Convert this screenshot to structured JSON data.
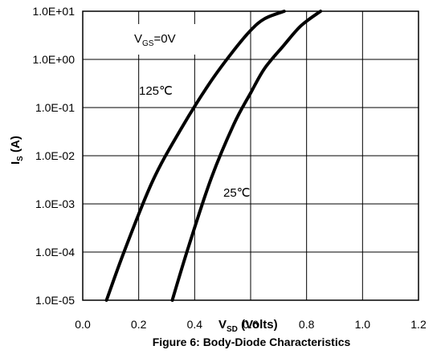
{
  "chart_data": {
    "type": "line",
    "title": "",
    "caption": "Figure 6: Body-Diode Characteristics",
    "xlabel": {
      "main": "V",
      "sub": "SD",
      "rest": " (Volts)"
    },
    "ylabel": {
      "main": "I",
      "sub": "S",
      "rest": " (A)"
    },
    "xlim": [
      0,
      1.2
    ],
    "ylim": [
      1e-05,
      10
    ],
    "yscale": "log",
    "grid": true,
    "x_ticks": [
      0,
      0.2,
      0.4,
      0.6,
      0.8,
      1.0,
      1.2
    ],
    "x_tick_labels": [
      "0.0",
      "0.2",
      "0.4",
      "0.6",
      "0.8",
      "1.0",
      "1.2"
    ],
    "y_ticks": [
      1e-05,
      0.0001,
      0.001,
      0.01,
      0.1,
      1,
      10
    ],
    "y_tick_labels": [
      "1.0E-05",
      "1.0E-04",
      "1.0E-03",
      "1.0E-02",
      "1.0E-01",
      "1.0E+00",
      "1.0E+01"
    ],
    "condition": {
      "main": "V",
      "sub": "GS",
      "rest": "=0V"
    },
    "series": [
      {
        "name": "125℃",
        "x": [
          0.085,
          0.15,
          0.25,
          0.35,
          0.45,
          0.53,
          0.6,
          0.65,
          0.72
        ],
        "y": [
          1e-05,
          0.00011,
          0.003,
          0.035,
          0.3,
          1.3,
          4.0,
          7.0,
          10
        ]
      },
      {
        "name": "25℃",
        "x": [
          0.32,
          0.38,
          0.46,
          0.54,
          0.6,
          0.65,
          0.72,
          0.78,
          0.85
        ],
        "y": [
          1e-05,
          0.00014,
          0.0035,
          0.045,
          0.2,
          0.65,
          2.0,
          5.0,
          10
        ]
      }
    ]
  }
}
